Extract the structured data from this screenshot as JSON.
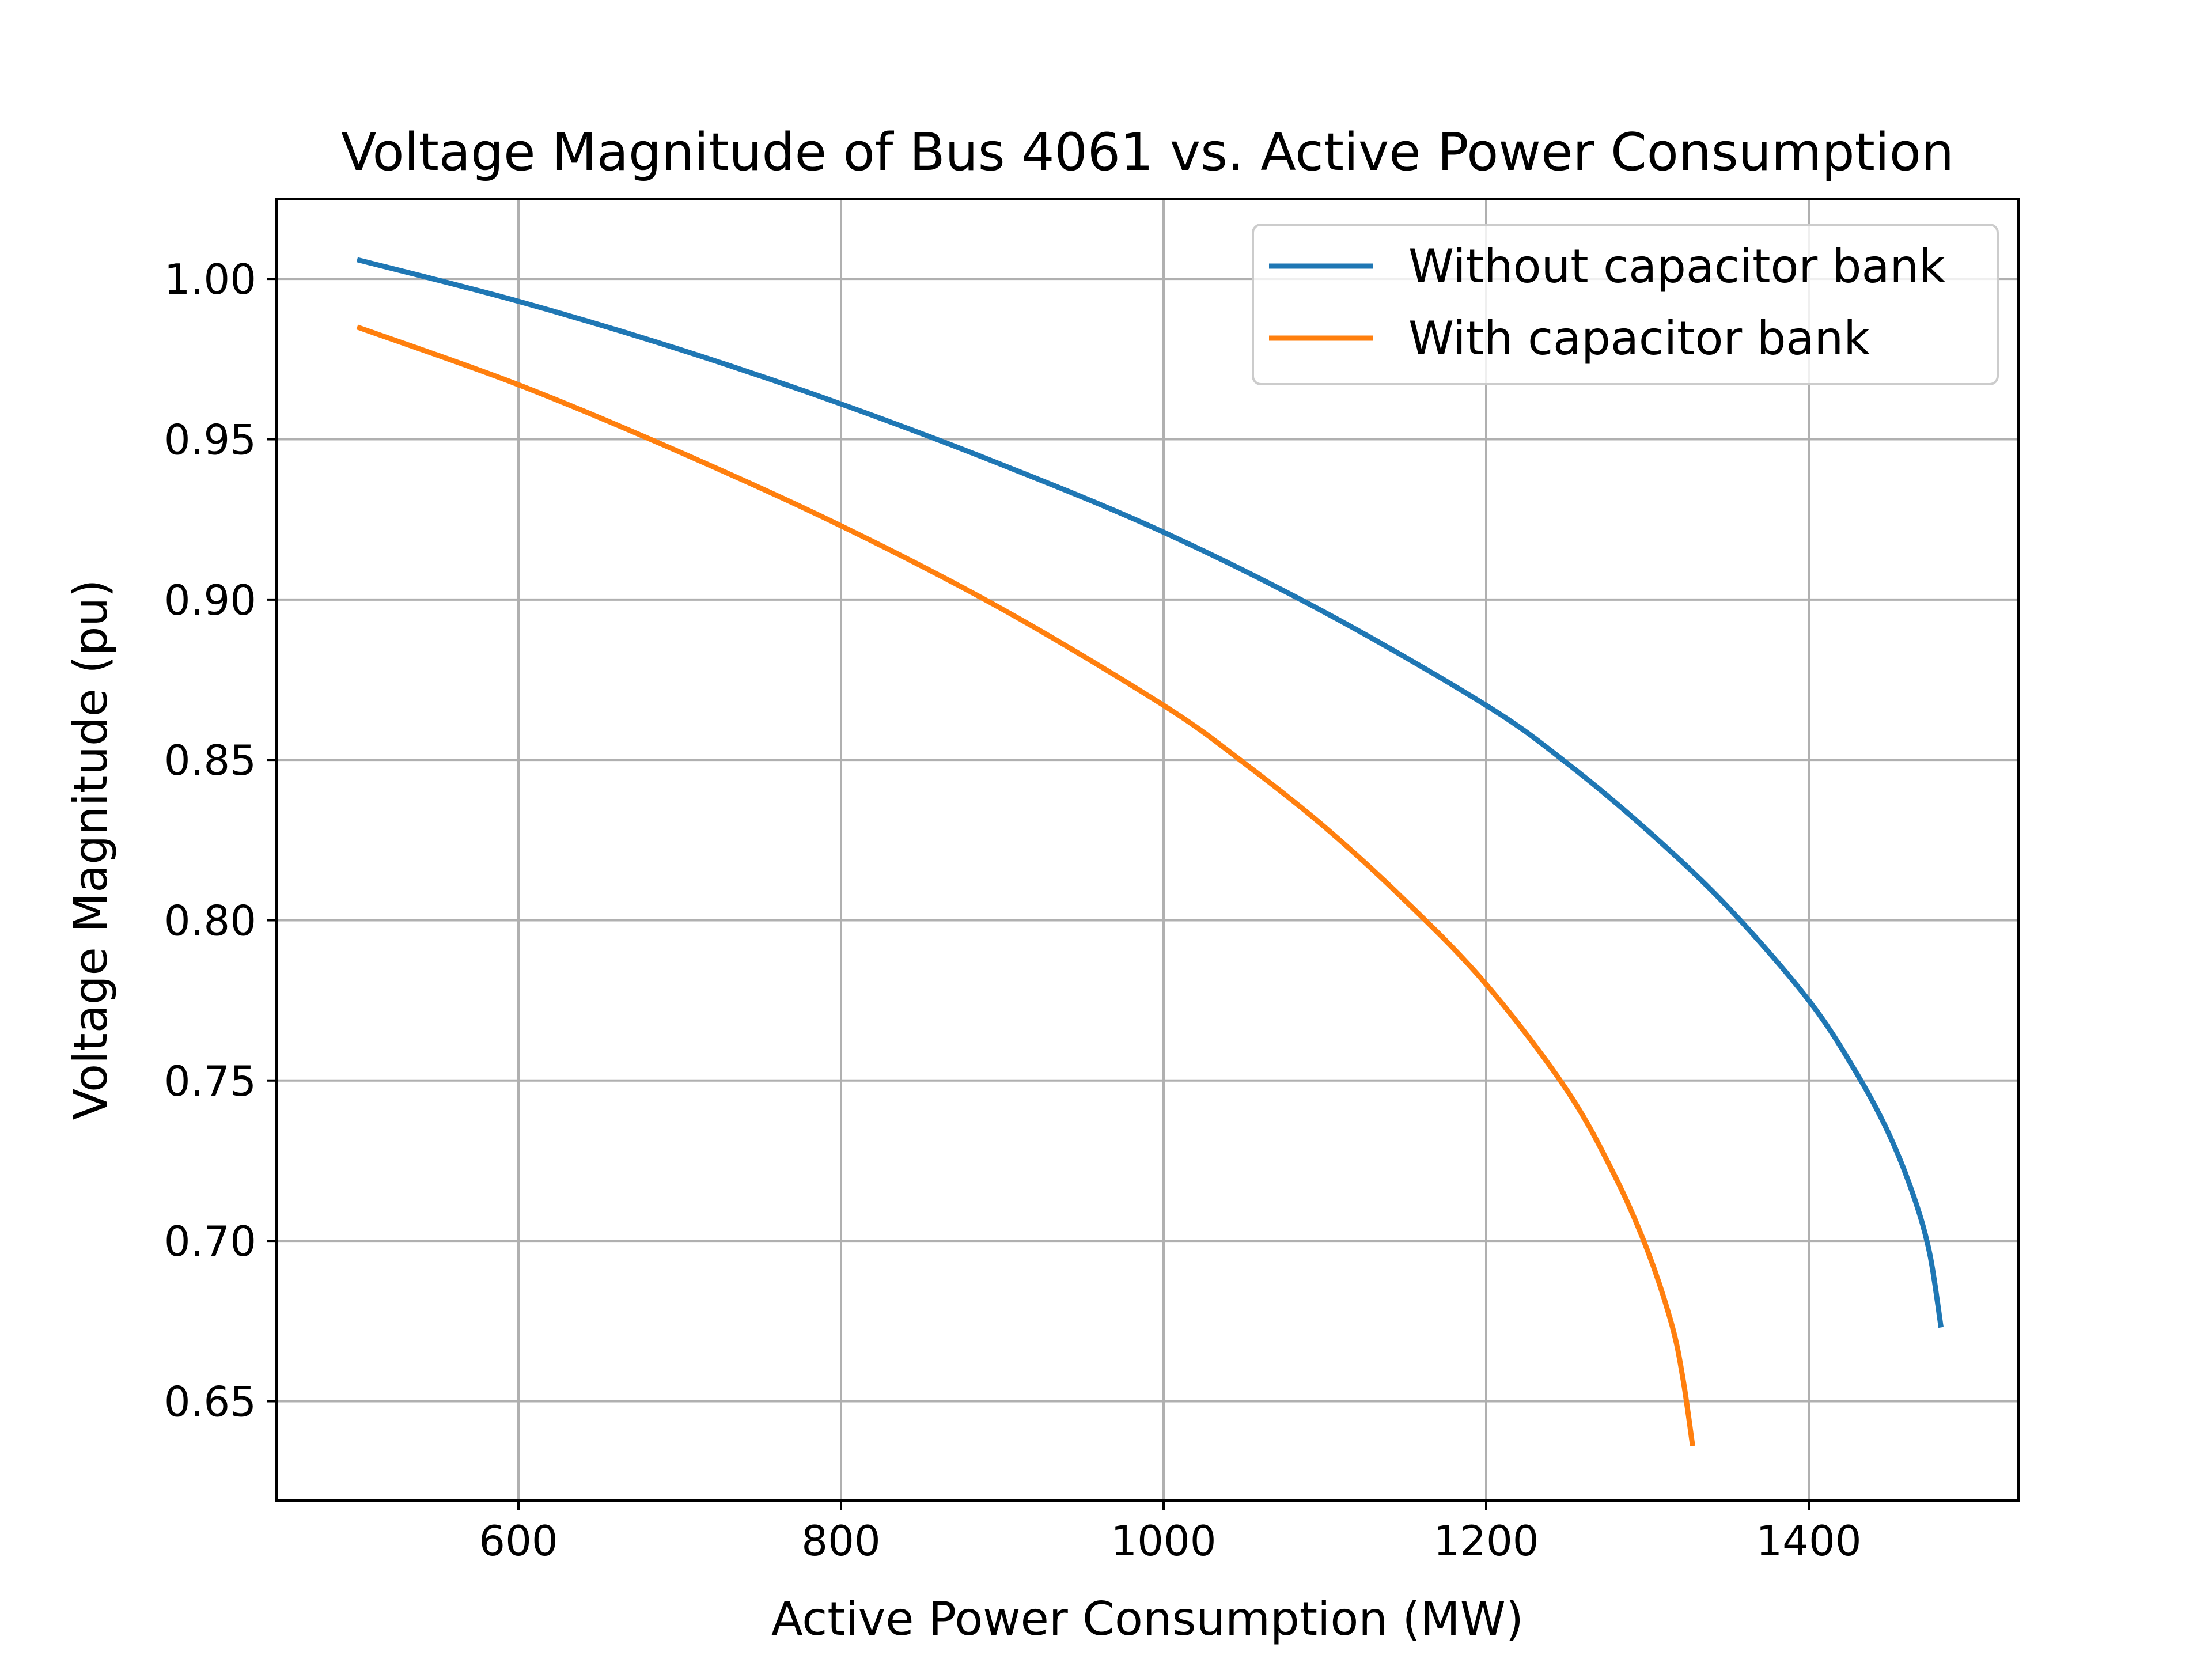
{
  "chart_data": {
    "type": "line",
    "title": "Voltage Magnitude of Bus 4061 vs. Active Power Consumption",
    "xlabel": "Active Power Consumption (MW)",
    "ylabel": "Voltage Magnitude (pu)",
    "xlim": [
      450,
      1530
    ],
    "ylim": [
      0.619,
      1.025
    ],
    "xticks": [
      600,
      800,
      1000,
      1200,
      1400
    ],
    "xtick_labels": [
      "600",
      "800",
      "1000",
      "1200",
      "1400"
    ],
    "yticks": [
      0.65,
      0.7,
      0.75,
      0.8,
      0.85,
      0.9,
      0.95,
      1.0
    ],
    "ytick_labels": [
      "0.65",
      "0.70",
      "0.75",
      "0.80",
      "0.85",
      "0.90",
      "0.95",
      "1.00"
    ],
    "grid": true,
    "legend_position": "top-right",
    "series": [
      {
        "name": "Without capacitor bank",
        "color": "#1f77b4",
        "x": [
          500,
          600,
          700,
          800,
          900,
          1000,
          1100,
          1200,
          1250,
          1300,
          1350,
          1400,
          1430,
          1450,
          1465,
          1475,
          1482
        ],
        "y": [
          1.006,
          0.993,
          0.978,
          0.961,
          0.942,
          0.921,
          0.896,
          0.867,
          0.849,
          0.828,
          0.804,
          0.775,
          0.752,
          0.733,
          0.714,
          0.696,
          0.673
        ]
      },
      {
        "name": "With capacitor bank",
        "color": "#ff7f0e",
        "x": [
          500,
          600,
          700,
          800,
          900,
          1000,
          1050,
          1100,
          1150,
          1200,
          1250,
          1280,
          1300,
          1315,
          1322,
          1328
        ],
        "y": [
          0.985,
          0.967,
          0.946,
          0.923,
          0.897,
          0.867,
          0.849,
          0.829,
          0.806,
          0.78,
          0.747,
          0.72,
          0.697,
          0.674,
          0.657,
          0.636
        ]
      }
    ]
  }
}
